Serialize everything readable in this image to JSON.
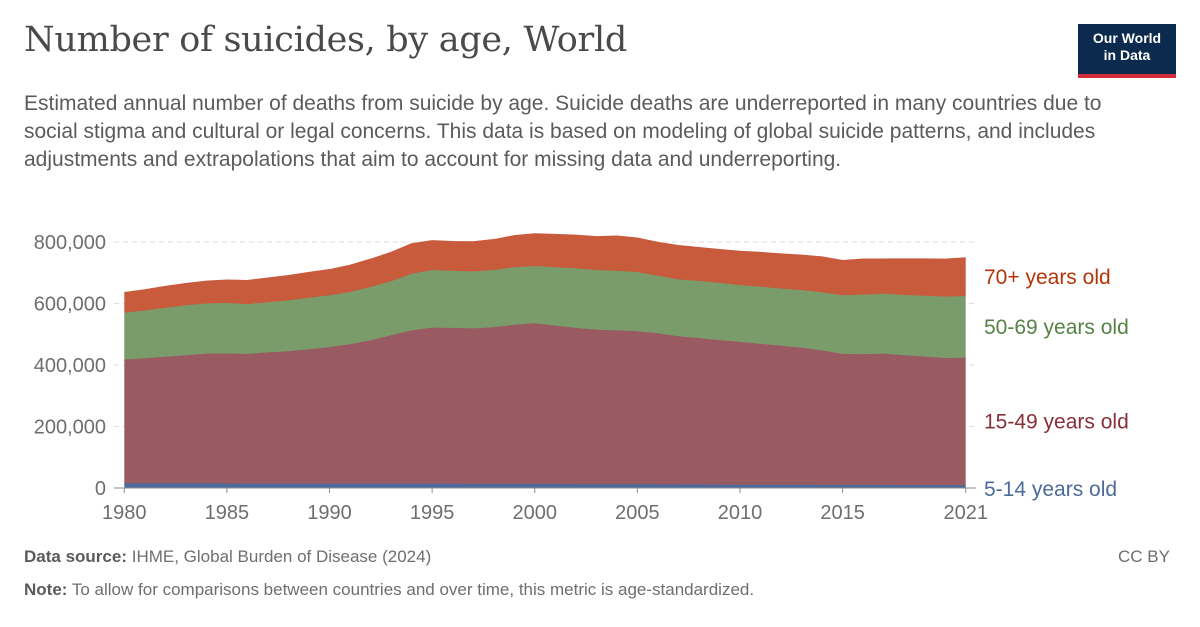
{
  "header": {
    "title": "Number of suicides, by age, World",
    "subtitle": "Estimated annual number of deaths from suicide by age. Suicide deaths are underreported in many countries due to social stigma and cultural or legal concerns. This data is based on modeling of global suicide patterns, and includes adjustments and extrapolations that aim to account for missing data and underreporting."
  },
  "logo": {
    "line1": "Our World",
    "line2": "in Data"
  },
  "footer": {
    "source_label": "Data source:",
    "source_text": "IHME, Global Burden of Disease (2024)",
    "note_label": "Note:",
    "note_text": "To allow for comparisons between countries and over time, this metric is age-standardized.",
    "license": "CC BY"
  },
  "chart_data": {
    "type": "area",
    "stacked": true,
    "x": [
      1980,
      1981,
      1982,
      1983,
      1984,
      1985,
      1986,
      1987,
      1988,
      1989,
      1990,
      1991,
      1992,
      1993,
      1994,
      1995,
      1996,
      1997,
      1998,
      1999,
      2000,
      2001,
      2002,
      2003,
      2004,
      2005,
      2006,
      2007,
      2008,
      2009,
      2010,
      2011,
      2012,
      2013,
      2014,
      2015,
      2016,
      2017,
      2018,
      2019,
      2020,
      2021
    ],
    "xlim": [
      1979.5,
      2021.5
    ],
    "x_ticks": [
      "1980",
      "1985",
      "1990",
      "1995",
      "2000",
      "2005",
      "2010",
      "2015",
      "2021"
    ],
    "ylim": [
      0,
      800000
    ],
    "y_ticks": [
      "0",
      "200,000",
      "400,000",
      "600,000",
      "800,000"
    ],
    "grid": "horizontal-dashed",
    "legend_placement": "right, inline labels",
    "series": [
      {
        "name": "5-14 years old",
        "color": "#4c6a9c",
        "label_color": "#4c6a9c",
        "values": [
          15000,
          15000,
          15000,
          15000,
          15000,
          14500,
          14000,
          14000,
          14000,
          13500,
          13500,
          13500,
          13500,
          13500,
          13500,
          13500,
          13500,
          13000,
          13000,
          13000,
          13000,
          13000,
          12500,
          12500,
          12500,
          12000,
          12000,
          11500,
          11500,
          11000,
          11000,
          10500,
          10500,
          10500,
          10000,
          10000,
          10000,
          10000,
          9500,
          9500,
          9500,
          9000
        ]
      },
      {
        "name": "15-49 years old",
        "color": "#9a5a62",
        "label_color": "#883039",
        "values": [
          403000,
          407000,
          412000,
          417000,
          422000,
          423000,
          422000,
          427000,
          431000,
          438000,
          445000,
          454000,
          467000,
          483000,
          499000,
          508000,
          507000,
          506000,
          510000,
          518000,
          523000,
          515000,
          508000,
          502000,
          500000,
          498000,
          491000,
          482000,
          476000,
          470000,
          464000,
          458000,
          452000,
          446000,
          437000,
          426000,
          425000,
          427000,
          422000,
          418000,
          413000,
          415000
        ]
      },
      {
        "name": "50-69 years old",
        "color": "#7a9c6b",
        "label_color": "#578145",
        "values": [
          152000,
          155000,
          159000,
          162000,
          163000,
          164000,
          162000,
          163000,
          165000,
          167000,
          168000,
          170000,
          173000,
          176000,
          184000,
          187000,
          186000,
          185000,
          186000,
          187000,
          186000,
          190000,
          194000,
          194000,
          194000,
          192000,
          187000,
          185000,
          186000,
          186000,
          185000,
          186000,
          186000,
          187000,
          189000,
          191000,
          194000,
          195000,
          196000,
          198000,
          200000,
          200000
        ]
      },
      {
        "name": "70+ years old",
        "color": "#c75b3c",
        "label_color": "#b13507",
        "values": [
          65000,
          67000,
          69000,
          70000,
          72000,
          74000,
          76000,
          78000,
          80000,
          82000,
          83000,
          86000,
          90000,
          93000,
          97000,
          95000,
          94000,
          96000,
          98000,
          102000,
          104000,
          106000,
          107000,
          108000,
          112000,
          110000,
          108000,
          109000,
          108000,
          108000,
          109000,
          111000,
          112000,
          113000,
          115000,
          112000,
          115000,
          112000,
          117000,
          119000,
          121000,
          124000
        ]
      }
    ]
  }
}
